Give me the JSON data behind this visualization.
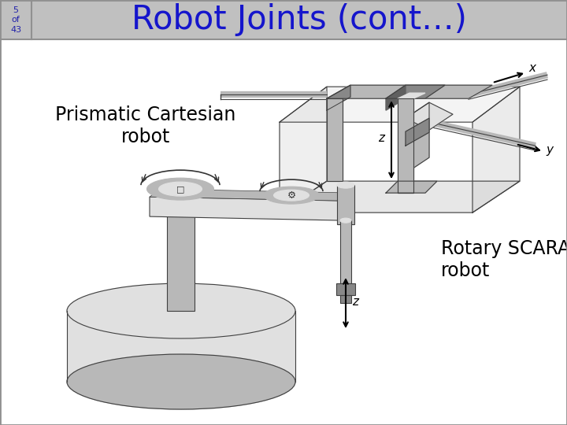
{
  "title": "Robot Joints (cont…)",
  "title_color": "#1515CC",
  "slide_number": "5\nof\n43",
  "slide_number_color": "#2222AA",
  "header_bg": "#C0C0C0",
  "body_bg": "#FFFFFF",
  "border_color": "#909090",
  "label_prismatic": "Prismatic Cartesian\nrobot",
  "label_scara": "Rotary SCARA\nrobot",
  "label_font_size": 17,
  "title_font_size": 30,
  "slide_num_font_size": 8,
  "gray_light": "#E0E0E0",
  "gray_mid": "#B8B8B8",
  "gray_dark": "#888888",
  "gray_darker": "#606060",
  "line_color": "#404040"
}
